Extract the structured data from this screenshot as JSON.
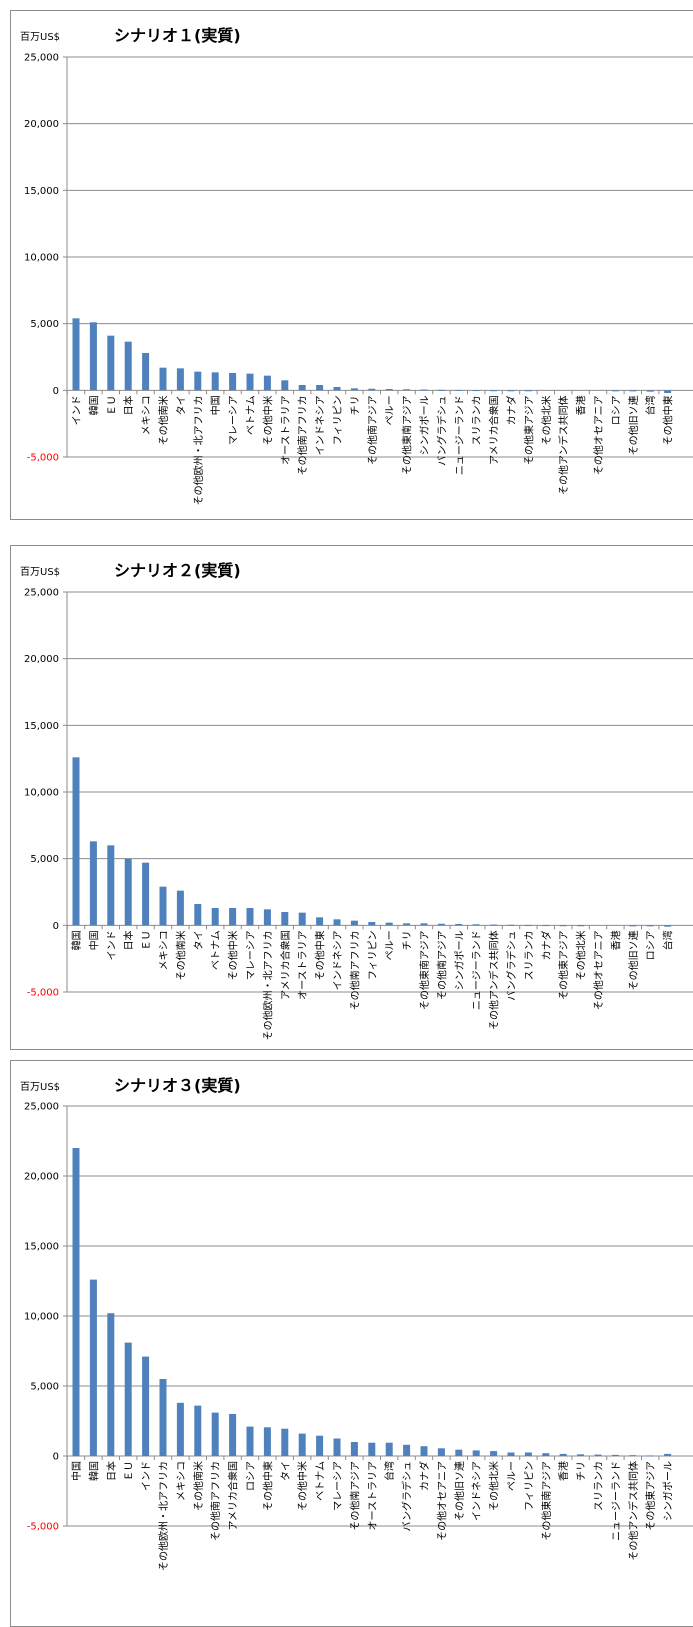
{
  "charts": [
    {
      "unit": "百万US$",
      "title": "シナリオ１(実質)",
      "chart_data": {
        "type": "bar",
        "title": "シナリオ１(実質)",
        "ylabel": "百万US$",
        "ylim": [
          -5000,
          25000
        ],
        "yticks": [
          25000,
          20000,
          15000,
          10000,
          5000,
          0,
          -5000
        ],
        "ytick_labels": [
          "25,000",
          "20,000",
          "15,000",
          "10,000",
          "5,000",
          "0",
          "-5,000"
        ],
        "grid": true,
        "color": "#4f81bd",
        "negative_tick_color": "#ff0000",
        "categories": [
          "インド",
          "韓国",
          "ＥＵ",
          "日本",
          "メキシコ",
          "その他南米",
          "タイ",
          "その他欧州・北アフリカ",
          "中国",
          "マレーシア",
          "ベトナム",
          "その他中米",
          "オーストラリア",
          "その他南アフリカ",
          "インドネシア",
          "フィリピン",
          "チリ",
          "その他南アジア",
          "ペルー",
          "その他東南アジア",
          "シンガポール",
          "バングラデシュ",
          "ニュージーランド",
          "スリランカ",
          "アメリカ合衆国",
          "カナダ",
          "その他東アジア",
          "その他北米",
          "その他アンデス共同体",
          "香港",
          "その他オセアニア",
          "ロシア",
          "その他旧ソ連",
          "台湾",
          "その他中東"
        ],
        "values": [
          5400,
          5100,
          4100,
          3650,
          2800,
          1700,
          1650,
          1400,
          1350,
          1300,
          1250,
          1100,
          750,
          400,
          400,
          250,
          150,
          120,
          100,
          80,
          60,
          40,
          30,
          20,
          10,
          5,
          5,
          0,
          0,
          0,
          0,
          -20,
          -50,
          -100,
          -200
        ]
      }
    },
    {
      "unit": "百万US$",
      "title": "シナリオ２(実質)",
      "chart_data": {
        "type": "bar",
        "title": "シナリオ２(実質)",
        "ylabel": "百万US$",
        "ylim": [
          -5000,
          25000
        ],
        "yticks": [
          25000,
          20000,
          15000,
          10000,
          5000,
          0,
          -5000
        ],
        "ytick_labels": [
          "25,000",
          "20,000",
          "15,000",
          "10,000",
          "5,000",
          "0",
          "-5,000"
        ],
        "grid": true,
        "color": "#4f81bd",
        "negative_tick_color": "#ff0000",
        "categories": [
          "韓国",
          "中国",
          "インド",
          "日本",
          "ＥＵ",
          "メキシコ",
          "その他南米",
          "タイ",
          "ベトナム",
          "その他中米",
          "マレーシア",
          "その他欧州・北アフリカ",
          "アメリカ合衆国",
          "オーストラリア",
          "その他中東",
          "インドネシア",
          "その他南アフリカ",
          "フィリピン",
          "ペルー",
          "チリ",
          "その他東南アジア",
          "その他南アジア",
          "シンガポール",
          "ニュージーランド",
          "その他アンデス共同体",
          "バングラデシュ",
          "スリランカ",
          "カナダ",
          "その他東アジア",
          "その他北米",
          "その他オセアニア",
          "香港",
          "その他旧ソ連",
          "ロシア",
          "台湾"
        ],
        "values": [
          12600,
          6300,
          6000,
          5000,
          4700,
          2900,
          2600,
          1600,
          1300,
          1300,
          1300,
          1200,
          1000,
          950,
          600,
          450,
          350,
          250,
          200,
          150,
          150,
          120,
          100,
          80,
          60,
          40,
          30,
          20,
          10,
          5,
          0,
          0,
          -20,
          -50,
          -100
        ]
      }
    },
    {
      "unit": "百万US$",
      "title": "シナリオ３(実質)",
      "chart_data": {
        "type": "bar",
        "title": "シナリオ３(実質)",
        "ylabel": "百万US$",
        "ylim": [
          -5000,
          25000
        ],
        "yticks": [
          25000,
          20000,
          15000,
          10000,
          5000,
          0,
          -5000
        ],
        "ytick_labels": [
          "25,000",
          "20,000",
          "15,000",
          "10,000",
          "5,000",
          "0",
          "-5,000"
        ],
        "grid": true,
        "color": "#4f81bd",
        "negative_tick_color": "#ff0000",
        "categories": [
          "中国",
          "韓国",
          "日本",
          "ＥＵ",
          "インド",
          "その他欧州・北アフリカ",
          "メキシコ",
          "その他南米",
          "その他南アフリカ",
          "アメリカ合衆国",
          "ロシア",
          "その他中東",
          "タイ",
          "その他中米",
          "ベトナム",
          "マレーシア",
          "その他南アジア",
          "オーストラリア",
          "台湾",
          "バングラデシュ",
          "カナダ",
          "その他オセアニア",
          "その他旧ソ連",
          "インドネシア",
          "その他北米",
          "ペルー",
          "フィリピン",
          "その他東南アジア",
          "香港",
          "チリ",
          "スリランカ",
          "ニュージーランド",
          "その他アンデス共同体",
          "その他東アジア",
          "シンガポール"
        ],
        "values": [
          22000,
          12600,
          10200,
          8100,
          7100,
          5500,
          3800,
          3600,
          3100,
          3000,
          2100,
          2050,
          1950,
          1600,
          1450,
          1250,
          1000,
          950,
          950,
          800,
          700,
          550,
          450,
          400,
          350,
          250,
          250,
          200,
          150,
          120,
          100,
          80,
          60,
          40,
          150
        ]
      }
    }
  ]
}
